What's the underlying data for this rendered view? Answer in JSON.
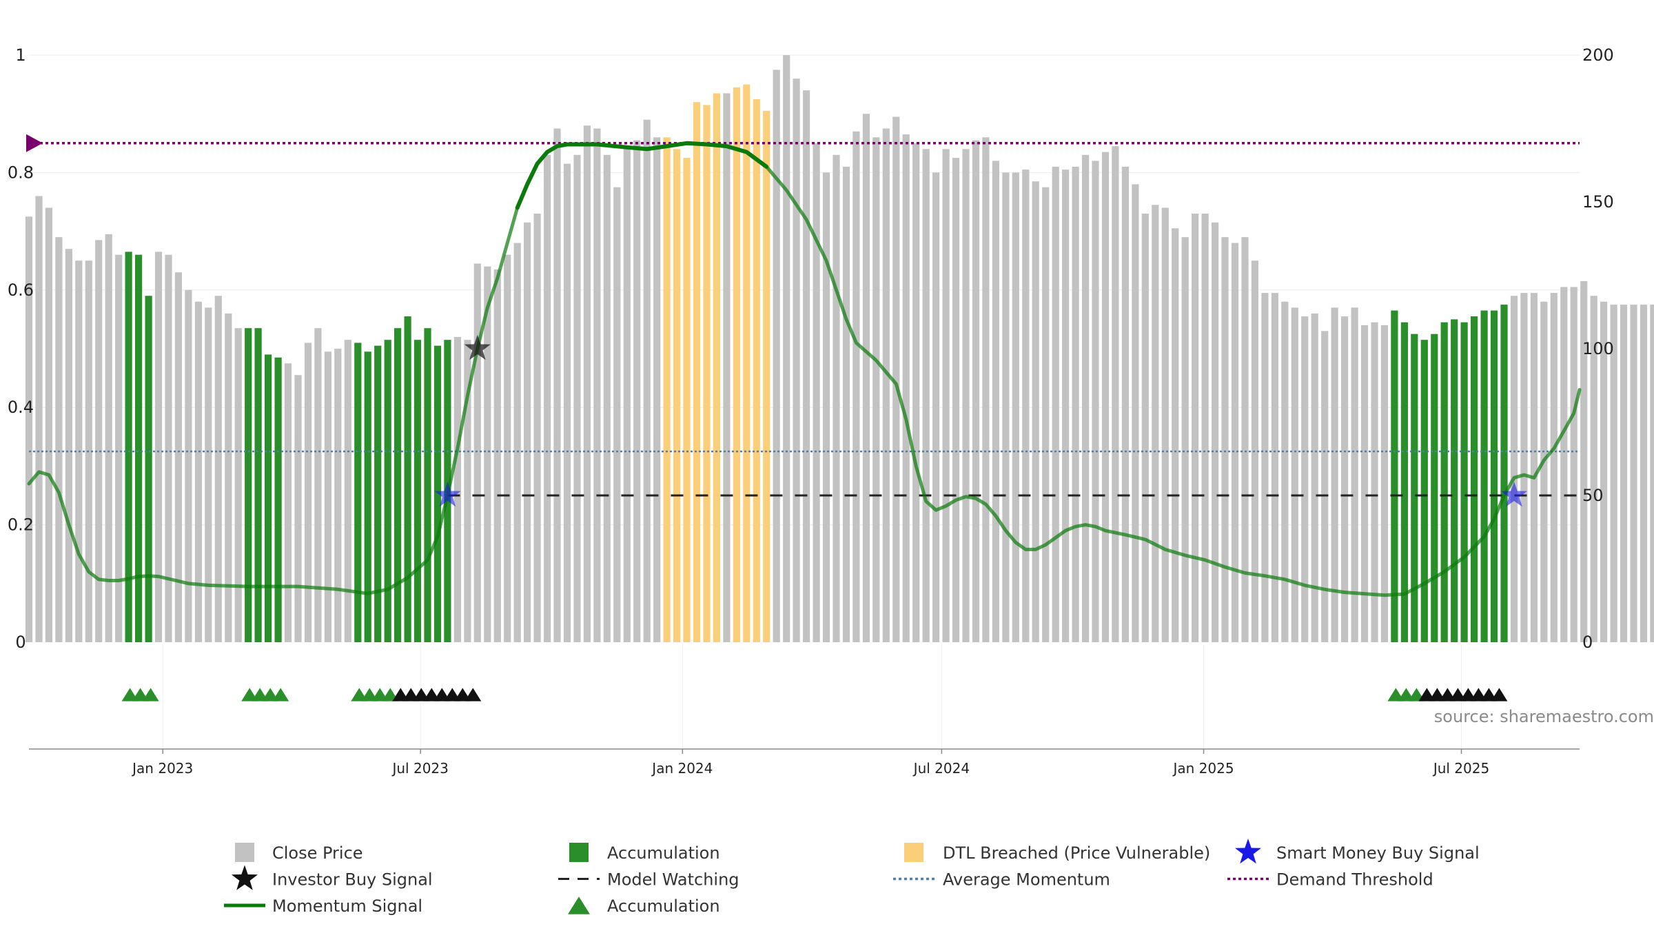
{
  "chart_data": {
    "type": "bar",
    "source": "source: sharemaestro.com",
    "x_ticks": [
      "Jan 2023",
      "Jul 2023",
      "Jan 2024",
      "Jul 2024",
      "Jan 2025",
      "Jul 2025"
    ],
    "left_axis": {
      "ticks": [
        "0",
        "0.2",
        "0.4",
        "0.6",
        "0.8",
        "1"
      ],
      "ylim": [
        0,
        1
      ]
    },
    "right_axis": {
      "ticks": [
        "0",
        "50",
        "100",
        "150",
        "200"
      ],
      "ylim": [
        0,
        200
      ]
    },
    "x_range": [
      "2022-09-29",
      "2025-09-22"
    ],
    "grid": true,
    "legend_placement": "bottom",
    "series": [
      {
        "name": "Close Price"
      },
      {
        "name": "Accumulation"
      },
      {
        "name": "DTL Breached (Price Vulnerable)"
      },
      {
        "name": "Smart Money Buy Signal"
      },
      {
        "name": "Investor Buy Signal"
      },
      {
        "name": "Model Watching"
      },
      {
        "name": "Average Momentum"
      },
      {
        "name": "Demand Threshold"
      },
      {
        "name": "Momentum Signal"
      },
      {
        "name": "Accumulation"
      }
    ],
    "start_date": "2022-09-29",
    "week_step_days": 7,
    "close_prices": [
      145,
      152,
      148,
      138,
      134,
      130,
      130,
      137,
      139,
      132,
      133,
      132,
      118,
      133,
      132,
      126,
      120,
      116,
      114,
      118,
      112,
      107,
      107,
      107,
      98,
      97,
      95,
      91,
      102,
      107,
      99,
      100,
      103,
      102,
      99,
      101,
      103,
      107,
      111,
      103,
      107,
      101,
      103,
      104,
      103,
      129,
      128,
      127,
      132,
      136,
      143,
      146,
      166,
      175,
      163,
      166,
      176,
      175,
      166,
      155,
      168,
      171,
      178,
      172,
      172,
      168,
      165,
      184,
      183,
      187,
      187,
      189,
      190,
      185,
      181,
      195,
      200,
      192,
      188,
      170,
      160,
      166,
      162,
      174,
      180,
      172,
      175,
      179,
      173,
      170,
      168,
      160,
      168,
      165,
      168,
      171,
      172,
      164,
      160,
      160,
      161,
      157,
      155,
      162,
      161,
      162,
      166,
      164,
      167,
      169,
      162,
      156,
      146,
      149,
      148,
      141,
      138,
      146,
      146,
      143,
      138,
      136,
      138,
      130,
      119,
      119,
      116,
      114,
      111,
      112,
      106,
      114,
      111,
      114,
      108,
      109,
      108,
      113,
      109,
      105,
      103,
      105,
      109,
      110,
      109,
      111,
      113,
      113,
      115,
      118,
      119,
      119,
      116,
      119,
      121,
      121,
      123,
      118,
      116,
      115,
      115,
      115,
      115,
      115,
      114
    ],
    "bar_categories": {
      "accumulation": [
        [
          10,
          12
        ],
        [
          22,
          25
        ],
        [
          33,
          42
        ],
        [
          137,
          148
        ]
      ],
      "dtl_breached": [
        [
          64,
          69
        ],
        [
          71,
          74
        ]
      ]
    },
    "momentum_signal": [
      [
        "2022-09-29",
        0.27
      ],
      [
        "2022-10-06",
        0.29
      ],
      [
        "2022-10-13",
        0.285
      ],
      [
        "2022-10-20",
        0.255
      ],
      [
        "2022-10-27",
        0.2
      ],
      [
        "2022-11-03",
        0.15
      ],
      [
        "2022-11-10",
        0.12
      ],
      [
        "2022-11-17",
        0.107
      ],
      [
        "2022-11-24",
        0.105
      ],
      [
        "2022-12-01",
        0.105
      ],
      [
        "2022-12-08",
        0.108
      ],
      [
        "2022-12-15",
        0.112
      ],
      [
        "2022-12-22",
        0.113
      ],
      [
        "2022-12-29",
        0.112
      ],
      [
        "2023-01-05",
        0.108
      ],
      [
        "2023-01-19",
        0.1
      ],
      [
        "2023-02-02",
        0.097
      ],
      [
        "2023-03-02",
        0.095
      ],
      [
        "2023-04-06",
        0.095
      ],
      [
        "2023-05-04",
        0.09
      ],
      [
        "2023-05-25",
        0.083
      ],
      [
        "2023-06-08",
        0.09
      ],
      [
        "2023-06-22",
        0.11
      ],
      [
        "2023-07-06",
        0.14
      ],
      [
        "2023-07-13",
        0.18
      ],
      [
        "2023-07-20",
        0.25
      ],
      [
        "2023-07-27",
        0.33
      ],
      [
        "2023-08-03",
        0.42
      ],
      [
        "2023-08-10",
        0.5
      ],
      [
        "2023-08-17",
        0.57
      ],
      [
        "2023-08-24",
        0.62
      ],
      [
        "2023-08-31",
        0.68
      ],
      [
        "2023-09-07",
        0.74
      ],
      [
        "2023-09-14",
        0.78
      ],
      [
        "2023-09-21",
        0.815
      ],
      [
        "2023-09-28",
        0.835
      ],
      [
        "2023-10-05",
        0.845
      ],
      [
        "2023-10-12",
        0.848
      ],
      [
        "2023-11-02",
        0.848
      ],
      [
        "2023-11-23",
        0.843
      ],
      [
        "2023-12-07",
        0.84
      ],
      [
        "2023-12-21",
        0.845
      ],
      [
        "2024-01-04",
        0.85
      ],
      [
        "2024-01-18",
        0.848
      ],
      [
        "2024-02-01",
        0.845
      ],
      [
        "2024-02-15",
        0.835
      ],
      [
        "2024-02-29",
        0.81
      ],
      [
        "2024-03-14",
        0.77
      ],
      [
        "2024-03-28",
        0.72
      ],
      [
        "2024-04-11",
        0.65
      ],
      [
        "2024-04-18",
        0.6
      ],
      [
        "2024-04-25",
        0.55
      ],
      [
        "2024-05-02",
        0.51
      ],
      [
        "2024-05-16",
        0.48
      ],
      [
        "2024-05-30",
        0.44
      ],
      [
        "2024-06-06",
        0.38
      ],
      [
        "2024-06-13",
        0.3
      ],
      [
        "2024-06-20",
        0.24
      ],
      [
        "2024-06-27",
        0.225
      ],
      [
        "2024-07-04",
        0.232
      ],
      [
        "2024-07-11",
        0.242
      ],
      [
        "2024-07-18",
        0.248
      ],
      [
        "2024-07-25",
        0.245
      ],
      [
        "2024-08-01",
        0.235
      ],
      [
        "2024-08-08",
        0.215
      ],
      [
        "2024-08-15",
        0.19
      ],
      [
        "2024-08-22",
        0.17
      ],
      [
        "2024-08-29",
        0.158
      ],
      [
        "2024-09-05",
        0.158
      ],
      [
        "2024-09-12",
        0.166
      ],
      [
        "2024-09-19",
        0.178
      ],
      [
        "2024-09-26",
        0.19
      ],
      [
        "2024-10-03",
        0.197
      ],
      [
        "2024-10-10",
        0.2
      ],
      [
        "2024-10-17",
        0.197
      ],
      [
        "2024-10-24",
        0.19
      ],
      [
        "2024-11-07",
        0.183
      ],
      [
        "2024-11-21",
        0.175
      ],
      [
        "2024-12-05",
        0.158
      ],
      [
        "2024-12-19",
        0.148
      ],
      [
        "2025-01-02",
        0.14
      ],
      [
        "2025-01-16",
        0.128
      ],
      [
        "2025-01-30",
        0.118
      ],
      [
        "2025-02-13",
        0.113
      ],
      [
        "2025-02-27",
        0.107
      ],
      [
        "2025-03-13",
        0.097
      ],
      [
        "2025-03-27",
        0.09
      ],
      [
        "2025-04-10",
        0.085
      ],
      [
        "2025-05-08",
        0.08
      ],
      [
        "2025-05-22",
        0.082
      ],
      [
        "2025-06-05",
        0.1
      ],
      [
        "2025-06-19",
        0.12
      ],
      [
        "2025-07-03",
        0.145
      ],
      [
        "2025-07-17",
        0.18
      ],
      [
        "2025-07-24",
        0.21
      ],
      [
        "2025-07-31",
        0.25
      ],
      [
        "2025-08-07",
        0.28
      ],
      [
        "2025-08-14",
        0.285
      ],
      [
        "2025-08-21",
        0.28
      ],
      [
        "2025-08-28",
        0.31
      ],
      [
        "2025-09-04",
        0.33
      ],
      [
        "2025-09-11",
        0.36
      ],
      [
        "2025-09-18",
        0.39
      ],
      [
        "2025-09-22",
        0.43
      ]
    ],
    "bold_momentum_range": [
      "2023-09-07",
      "2024-03-07"
    ],
    "average_momentum": 0.325,
    "demand_threshold": 0.85,
    "model_watching": {
      "level": 0.25,
      "start": "2023-07-20",
      "end": "2025-09-22"
    },
    "smart_money_buy_signals": [
      [
        "2023-07-20",
        0.25
      ],
      [
        "2025-08-07",
        0.25
      ]
    ],
    "investor_buy_signals": [
      [
        "2023-08-10",
        0.5
      ]
    ],
    "accumulation_markers": {
      "green_count": 14,
      "black_count": 16
    },
    "colors": {
      "close_price": "#c2c2c2",
      "accumulation": "#2a8f2a",
      "dtl_breached": "#fbcf7a",
      "momentum": "#0a7a0a",
      "average_momentum": "#4a7fb0",
      "demand_threshold": "#7a006e",
      "model_watching": "#222222",
      "smart_money": "#1a1ae6",
      "investor": "#111111"
    }
  }
}
